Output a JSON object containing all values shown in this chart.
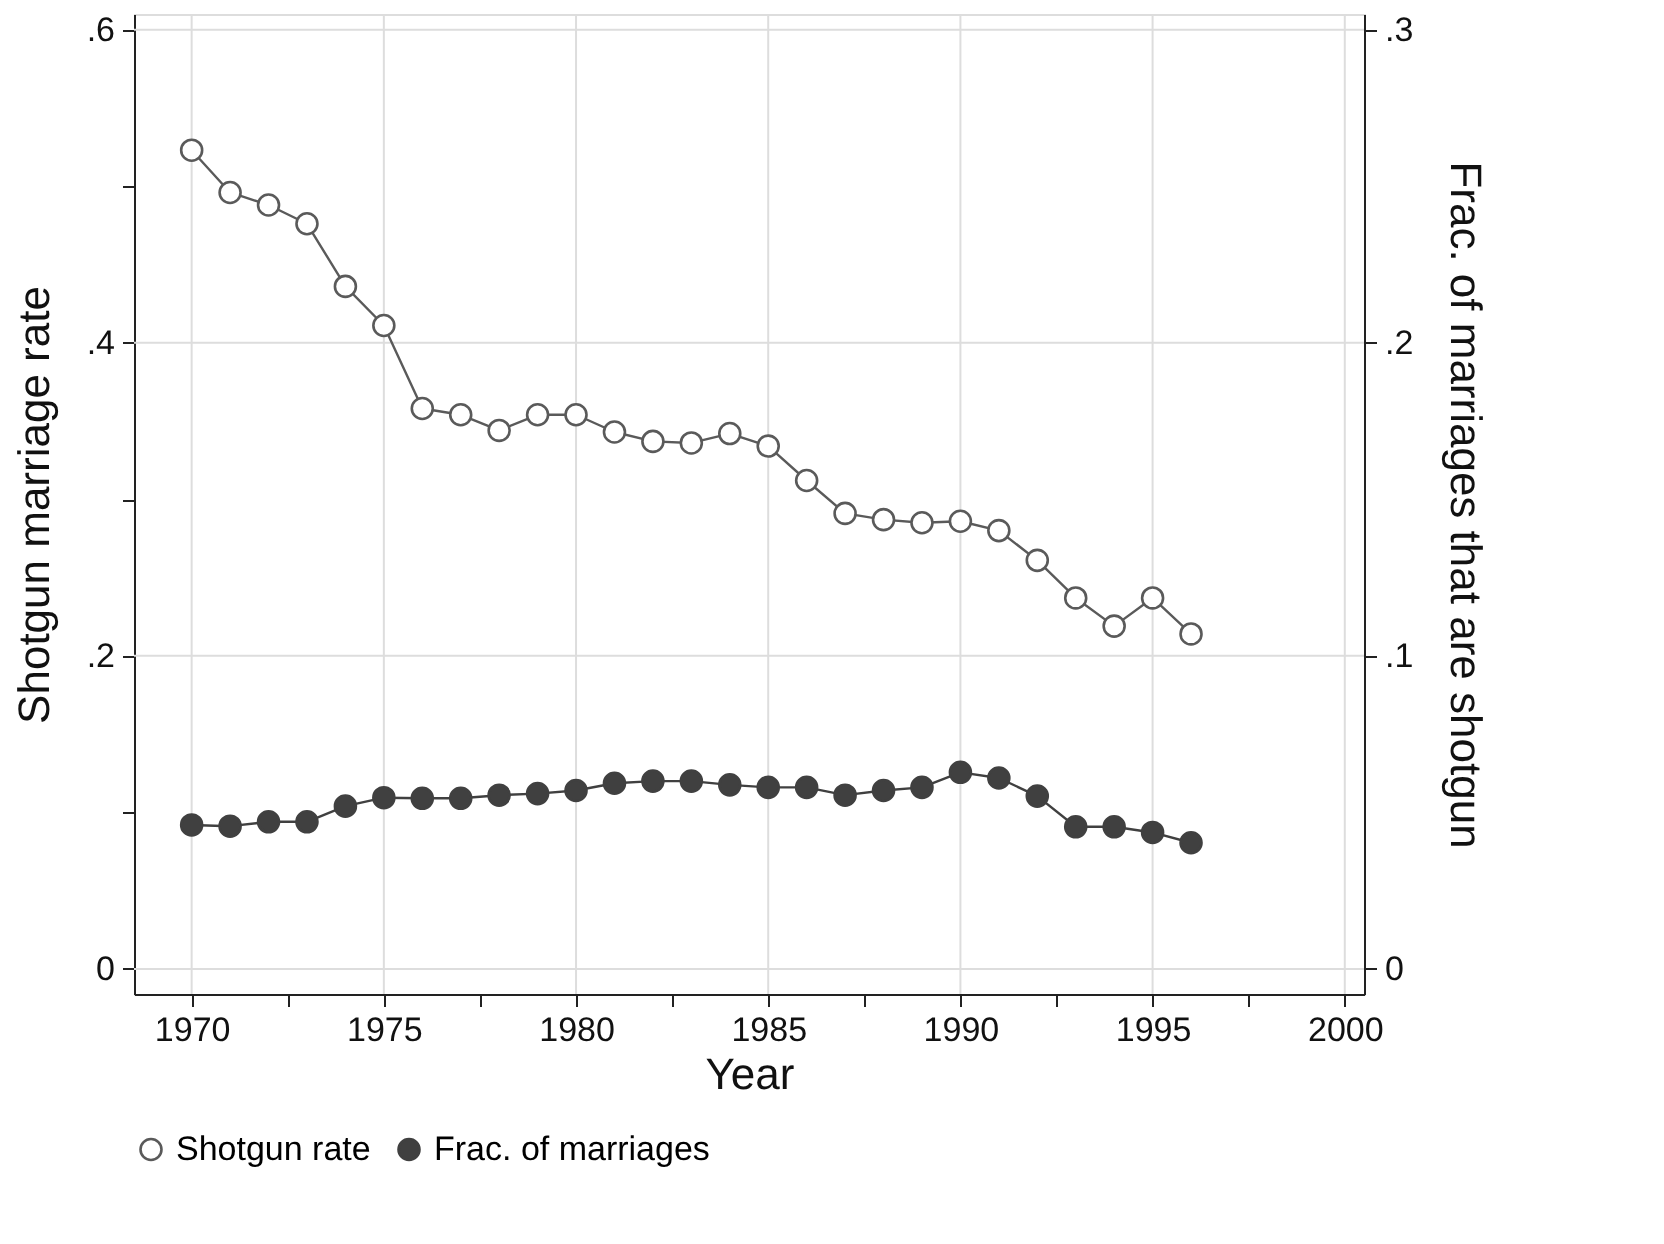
{
  "chart_data": {
    "type": "line",
    "xlabel": "Year",
    "ylabel": "Shotgun marriage rate",
    "y2label": "Frac. of marriages that are shotgun",
    "x": [
      1970,
      1971,
      1972,
      1973,
      1974,
      1975,
      1976,
      1977,
      1978,
      1979,
      1980,
      1981,
      1982,
      1983,
      1984,
      1985,
      1986,
      1987,
      1988,
      1989,
      1990,
      1991,
      1992,
      1993,
      1994,
      1995,
      1996
    ],
    "series": [
      {
        "name": "Shotgun rate",
        "color": "#5a5a5a",
        "marker": "circle",
        "values": [
          0.523,
          0.496,
          0.488,
          0.476,
          0.436,
          0.411,
          0.358,
          0.354,
          0.344,
          0.354,
          0.354,
          0.343,
          0.337,
          0.336,
          0.342,
          0.334,
          0.312,
          0.291,
          0.287,
          0.285,
          0.286,
          0.28,
          0.261,
          0.237,
          0.219,
          0.237,
          0.214
        ]
      },
      {
        "name": "Frac. of marriages",
        "color": "#404040",
        "marker": "circle",
        "axis": "y2",
        "values": [
          0.046,
          0.0456,
          0.047,
          0.047,
          0.052,
          0.0547,
          0.0545,
          0.0545,
          0.0555,
          0.056,
          0.057,
          0.0593,
          0.06,
          0.06,
          0.0588,
          0.058,
          0.058,
          0.0555,
          0.057,
          0.058,
          0.0628,
          0.061,
          0.0552,
          0.0454,
          0.0454,
          0.0436,
          0.0403
        ]
      }
    ],
    "xlim": [
      1968.5,
      2000.5
    ],
    "xticks": [
      1970,
      {
        "value": 1972.5,
        "label": null
      },
      1975,
      {
        "value": 1977.5,
        "label": null
      },
      1980,
      {
        "value": 1982.5,
        "label": null
      },
      1985,
      {
        "value": 1987.5,
        "label": null
      },
      1990,
      {
        "value": 1992.5,
        "label": null
      },
      1995,
      {
        "value": 1997.5,
        "label": null
      },
      2000
    ],
    "ylim": [
      -0.016,
      0.61
    ],
    "yticks": [
      {
        "value": 0,
        "label": "0"
      },
      {
        "value": 0.1,
        "label": null
      },
      {
        "value": 0.2,
        "label": ".2"
      },
      {
        "value": 0.3,
        "label": null
      },
      {
        "value": 0.4,
        "label": ".4"
      },
      {
        "value": 0.5,
        "label": null
      },
      {
        "value": 0.6,
        "label": ".6"
      }
    ],
    "y2lim": [
      -0.008,
      0.305
    ],
    "y2ticks": [
      {
        "value": 0,
        "label": "0"
      },
      {
        "value": 0.1,
        "label": ".1"
      },
      {
        "value": 0.2,
        "label": ".2"
      },
      {
        "value": 0.3,
        "label": ".3"
      }
    ],
    "grid": true,
    "legend": "bottom",
    "line_style": "solid"
  }
}
